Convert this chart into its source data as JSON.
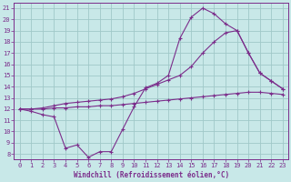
{
  "xlabel": "Windchill (Refroidissement éolien,°C)",
  "x": [
    0,
    1,
    2,
    3,
    4,
    5,
    6,
    7,
    8,
    9,
    10,
    11,
    12,
    13,
    14,
    15,
    16,
    17,
    18,
    19,
    20,
    21,
    22,
    23
  ],
  "line1": [
    12.0,
    11.8,
    11.5,
    11.3,
    8.5,
    8.8,
    7.7,
    8.2,
    8.2,
    10.2,
    12.2,
    13.9,
    14.3,
    15.0,
    18.3,
    20.2,
    21.0,
    20.5,
    19.6,
    19.0,
    17.0,
    15.2,
    14.5,
    13.8
  ],
  "line2": [
    12.0,
    12.0,
    12.1,
    12.3,
    12.5,
    12.6,
    12.7,
    12.8,
    12.9,
    13.1,
    13.4,
    13.8,
    14.2,
    14.6,
    15.0,
    15.8,
    17.0,
    18.0,
    18.8,
    19.0,
    17.0,
    15.2,
    14.5,
    13.8
  ],
  "line3": [
    12.0,
    12.0,
    12.0,
    12.1,
    12.1,
    12.2,
    12.2,
    12.3,
    12.3,
    12.4,
    12.5,
    12.6,
    12.7,
    12.8,
    12.9,
    13.0,
    13.1,
    13.2,
    13.3,
    13.4,
    13.5,
    13.5,
    13.4,
    13.3
  ],
  "line_color": "#7b2d8b",
  "bg_color": "#c8e8e8",
  "grid_color": "#a0c8c8",
  "xlim": [
    -0.5,
    23.5
  ],
  "ylim": [
    7.5,
    21.5
  ],
  "yticks": [
    8,
    9,
    10,
    11,
    12,
    13,
    14,
    15,
    16,
    17,
    18,
    19,
    20,
    21
  ],
  "xticks": [
    0,
    1,
    2,
    3,
    4,
    5,
    6,
    7,
    8,
    9,
    10,
    11,
    12,
    13,
    14,
    15,
    16,
    17,
    18,
    19,
    20,
    21,
    22,
    23
  ],
  "tick_fontsize": 5.0,
  "xlabel_fontsize": 5.5
}
